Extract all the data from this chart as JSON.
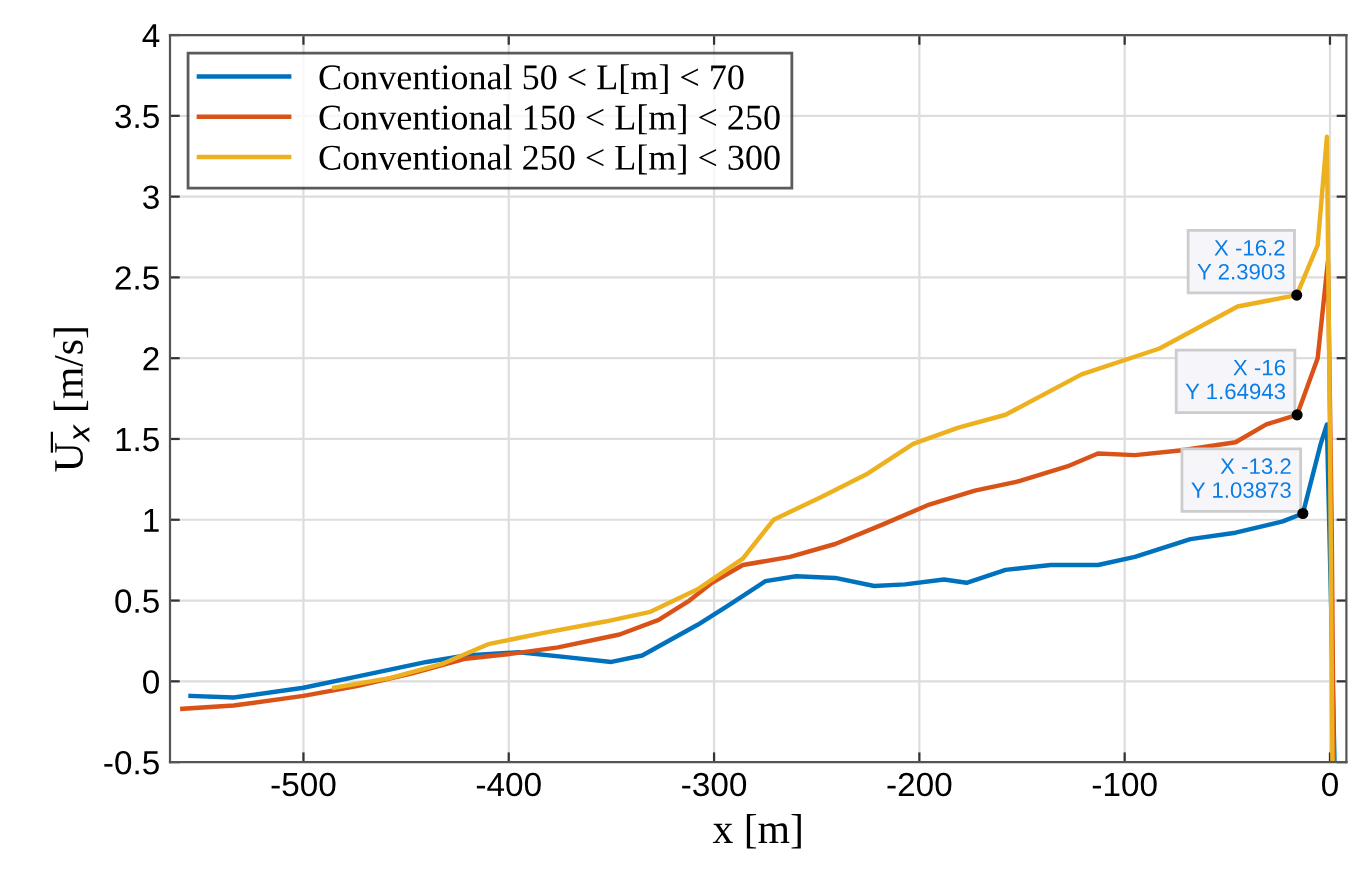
{
  "chart_data": {
    "type": "line",
    "xlabel": "x [m]",
    "ylabel": "U̅$_{x}$ [m/s]",
    "xlim": [
      -565,
      8
    ],
    "ylim": [
      -0.5,
      4
    ],
    "xticks": [
      -500,
      -400,
      -300,
      -200,
      -100,
      0
    ],
    "yticks": [
      -0.5,
      0,
      0.5,
      1,
      1.5,
      2,
      2.5,
      3,
      3.5,
      4
    ],
    "grid": true,
    "legend": "top left",
    "line_style": "solid",
    "marker": "none",
    "series": [
      {
        "name": "Conventional 50 < L[m] < 70",
        "color": "#0072bd",
        "x": [
          -555,
          -534,
          -500,
          -470,
          -440,
          -421,
          -395,
          -372,
          -350,
          -335,
          -308,
          -293,
          -275,
          -260,
          -241,
          -222,
          -207,
          -188,
          -177,
          -158,
          -136,
          -113,
          -95,
          -68,
          -46,
          -23,
          -13.2,
          -4.5,
          -1.5,
          0.5,
          2.2
        ],
        "values": [
          -0.09,
          -0.1,
          -0.04,
          0.04,
          0.12,
          0.16,
          0.18,
          0.15,
          0.12,
          0.16,
          0.35,
          0.47,
          0.62,
          0.65,
          0.64,
          0.59,
          0.6,
          0.63,
          0.61,
          0.69,
          0.72,
          0.72,
          0.77,
          0.88,
          0.92,
          0.99,
          1.03873,
          1.47,
          1.59,
          0.5,
          -0.5
        ]
      },
      {
        "name": "Conventional 150 < L[m] < 250",
        "color": "#d95319",
        "x": [
          -559,
          -534,
          -500,
          -474,
          -447,
          -421,
          -399,
          -376,
          -346,
          -327,
          -312,
          -301,
          -286,
          -263,
          -241,
          -218,
          -196,
          -173,
          -151,
          -128,
          -113,
          -95,
          -72,
          -46,
          -31,
          -16,
          -6,
          -1,
          0.8,
          1.8
        ],
        "values": [
          -0.17,
          -0.15,
          -0.09,
          -0.03,
          0.05,
          0.14,
          0.17,
          0.21,
          0.29,
          0.38,
          0.5,
          0.61,
          0.72,
          0.77,
          0.85,
          0.97,
          1.09,
          1.18,
          1.24,
          1.33,
          1.41,
          1.4,
          1.43,
          1.48,
          1.59,
          1.64943,
          2.0,
          2.6,
          1.0,
          -0.5
        ]
      },
      {
        "name": "Conventional 250 < L[m] < 300",
        "color": "#edb120",
        "x": [
          -485,
          -458,
          -432,
          -410,
          -383,
          -353,
          -331,
          -308,
          -286,
          -271,
          -248,
          -226,
          -203,
          -181,
          -158,
          -121,
          -83,
          -45,
          -16.2,
          -6,
          -1.5,
          0,
          1.2
        ],
        "values": [
          -0.04,
          0.02,
          0.11,
          0.23,
          0.3,
          0.37,
          0.43,
          0.57,
          0.76,
          1.0,
          1.14,
          1.28,
          1.47,
          1.57,
          1.65,
          1.9,
          2.06,
          2.32,
          2.3903,
          2.7,
          3.37,
          1.5,
          -0.5
        ]
      }
    ],
    "annotations": [
      {
        "text": "X -16.2\nY 2.3903",
        "x": -16.2,
        "y": 2.3903
      },
      {
        "text": "X -16\nY 1.64943",
        "x": -16,
        "y": 1.64943
      },
      {
        "text": "X -13.2\nY 1.03873",
        "x": -13.2,
        "y": 1.03873
      }
    ]
  }
}
